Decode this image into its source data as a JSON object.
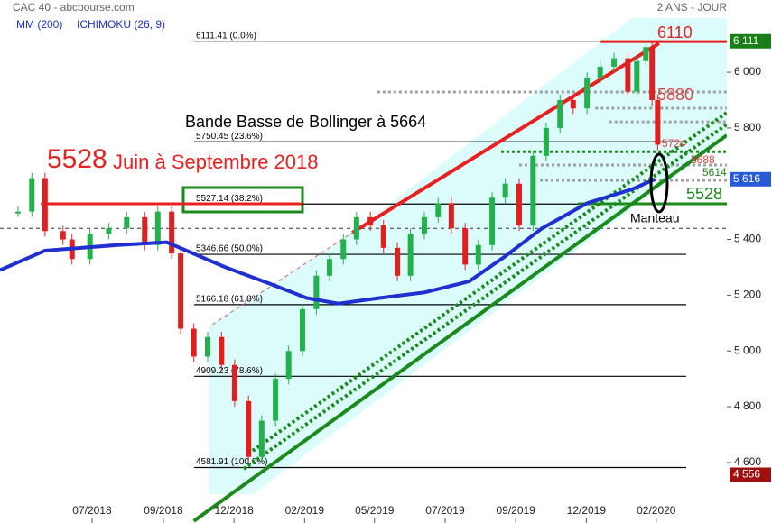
{
  "chart_data": {
    "type": "candlestick",
    "title": "CAC 40 - abcbourse.com",
    "subtitle": "2 ANS - JOUR",
    "legend_extra": "ICHIMOKU (26, 9)",
    "up_color": "#22b14c",
    "down_color": "#e02020",
    "x": [
      2.6,
      4.6,
      6.5,
      9.1,
      10.4,
      13,
      15.7,
      18.3,
      20.9,
      22.8,
      24.8,
      26.1,
      28,
      30,
      32,
      33.9,
      35.9,
      37.8,
      39.8,
      41.7,
      43.7,
      45.7,
      47.6,
      49.6,
      51.5,
      53.5,
      55.4,
      57.4,
      59.3,
      61.3,
      63.3,
      65.2,
      67.2,
      69.1,
      71.1,
      73,
      75,
      77,
      78.9,
      80.9,
      82.8,
      84.8,
      86.7,
      88.7,
      90.7,
      92,
      93.3,
      94.2,
      95
    ],
    "values": [
      5500,
      5620,
      5430,
      5400,
      5330,
      5420,
      5440,
      5480,
      5380,
      5500,
      5350,
      5080,
      4980,
      5050,
      4950,
      4820,
      4620,
      4750,
      4900,
      5000,
      5150,
      5270,
      5330,
      5400,
      5480,
      5450,
      5370,
      5270,
      5420,
      5480,
      5530,
      5440,
      5310,
      5380,
      5550,
      5600,
      5450,
      5700,
      5800,
      5900,
      5870,
      5980,
      6020,
      6050,
      5930,
      6040,
      6090,
      5900,
      5740
    ],
    "moving_average": {
      "name": "MM (200)",
      "color": "#1f2fd0",
      "x": [
        0,
        6.5,
        17,
        24.1,
        32.6,
        39.1,
        44.3,
        48.9,
        54.8,
        61.3,
        67.8,
        73,
        78.3,
        84.8,
        91.3,
        94.6
      ],
      "values": [
        5290,
        5360,
        5380,
        5390,
        5300,
        5240,
        5190,
        5170,
        5190,
        5210,
        5250,
        5340,
        5440,
        5530,
        5580,
        5616
      ]
    },
    "xlim": [
      0,
      105
    ],
    "ylim": [
      4383,
      6259
    ],
    "xticks": [
      {
        "value": 13.3,
        "label": "07/2018"
      },
      {
        "value": 23.6,
        "label": "09/2018"
      },
      {
        "value": 33.8,
        "label": "12/2018"
      },
      {
        "value": 44,
        "label": "02/2019"
      },
      {
        "value": 54.1,
        "label": "05/2019"
      },
      {
        "value": 64.3,
        "label": "07/2019"
      },
      {
        "value": 74.5,
        "label": "09/2019"
      },
      {
        "value": 84.7,
        "label": "12/2019"
      },
      {
        "value": 94.8,
        "label": "02/2020"
      }
    ],
    "yticks": [
      {
        "value": 6000,
        "label": "6 000"
      },
      {
        "value": 5800,
        "label": "5 800"
      },
      {
        "value": 5400,
        "label": "5 400"
      },
      {
        "value": 5200,
        "label": "5 200"
      },
      {
        "value": 5000,
        "label": "5 000"
      },
      {
        "value": 4800,
        "label": "4 800"
      },
      {
        "value": 4600,
        "label": "4 600"
      }
    ],
    "fibonacci": [
      {
        "value": 6111.41,
        "label": "6111.41  (0.0%)"
      },
      {
        "value": 5750.45,
        "label": "5750.45  (23.6%)"
      },
      {
        "value": 5527.14,
        "label": "5527.14  (38.2%)"
      },
      {
        "value": 5346.66,
        "label": "5346.66  (50.0%)"
      },
      {
        "value": 5166.18,
        "label": "5166.18  (61.8%)"
      },
      {
        "value": 4909.23,
        "label": "4909.23  (78.6%)"
      },
      {
        "value": 4581.91,
        "label": "4581.91  (100.0%)"
      }
    ],
    "levels": [
      {
        "value": 5528,
        "from": 5.9,
        "to": 43.7,
        "color": "#e82020",
        "style": "solid"
      },
      {
        "value": 6110,
        "from": 86.7,
        "to": 105,
        "color": "#e82020",
        "style": "solid"
      },
      {
        "value": 5528,
        "from": 83.5,
        "to": 105,
        "color": "#1a8a1a",
        "style": "solid"
      },
      {
        "value": 5929,
        "from": 54.5,
        "to": 105,
        "color": "#a0a0a0",
        "style": "dotted"
      },
      {
        "value": 5871,
        "from": 86,
        "to": 105,
        "color": "#a0a0a0",
        "style": "dotted"
      },
      {
        "value": 5822,
        "from": 88,
        "to": 105,
        "color": "#a0a0a0",
        "style": "dotted"
      },
      {
        "value": 5715,
        "from": 72.4,
        "to": 105,
        "color": "#1a8a1a",
        "style": "dotted"
      },
      {
        "value": 5667,
        "from": 75,
        "to": 105,
        "color": "#a0a0a0",
        "style": "dotted"
      },
      {
        "value": 5612,
        "from": 78,
        "to": 105,
        "color": "#a0a0a0",
        "style": "dotted"
      },
      {
        "value": 5440,
        "from": 0,
        "to": 105,
        "color": "#333333",
        "style": "dashed"
      }
    ],
    "trendlines": [
      {
        "points": [
          [
            50.9,
            5424.5
          ],
          [
            95.2,
            6103.5
          ]
        ],
        "color": "#e82020",
        "style": "solid"
      },
      {
        "points": [
          [
            30.7,
            5094.7
          ],
          [
            50.9,
            5424.5
          ]
        ],
        "color": "#e06060",
        "style": "dashed"
      },
      {
        "points": [
          [
            28,
            4390
          ],
          [
            105,
            5774
          ]
        ],
        "color": "#1a8a1a",
        "style": "solid"
      },
      {
        "points": [
          [
            35.2,
            4577
          ],
          [
            105,
            5813
          ]
        ],
        "color": "#1a8a1a",
        "style": "dotted"
      },
      {
        "points": [
          [
            36.5,
            4642
          ],
          [
            105,
            5855
          ]
        ],
        "color": "#1a8a1a",
        "style": "dotted"
      }
    ],
    "price_tags": [
      {
        "value": 6111,
        "label": "6 111",
        "color": "#1a7f1a"
      },
      {
        "value": 5616,
        "label": "5 616",
        "color": "#2a5bd7"
      },
      {
        "value": 4556,
        "label": "4 556",
        "color": "#a01010"
      }
    ],
    "annotations": [
      "Bande Basse de Bollinger à 5664",
      "5528",
      "Juin à Septembre 2018",
      "6110",
      "5880",
      "5724",
      "5688",
      "5614",
      "5528",
      "Manteau"
    ]
  }
}
